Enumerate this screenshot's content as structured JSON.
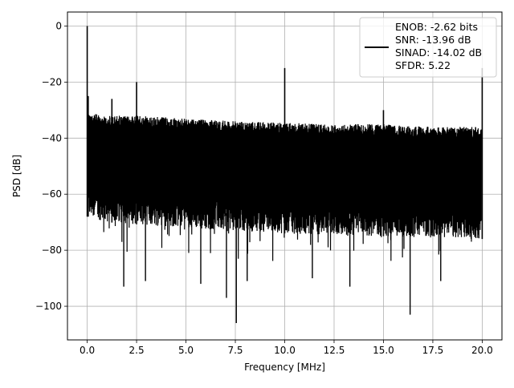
{
  "chart_data": {
    "type": "line",
    "title": "",
    "xlabel": "Frequency [MHz]",
    "ylabel": "PSD [dB]",
    "xlim": [
      -1.0,
      21.0
    ],
    "ylim": [
      -112,
      5
    ],
    "xticks": [
      0.0,
      2.5,
      5.0,
      7.5,
      10.0,
      12.5,
      15.0,
      17.5,
      20.0
    ],
    "xtick_labels": [
      "0.0",
      "2.5",
      "5.0",
      "7.5",
      "10.0",
      "12.5",
      "15.0",
      "17.5",
      "20.0"
    ],
    "yticks": [
      0,
      -20,
      -40,
      -60,
      -80,
      -100
    ],
    "ytick_labels": [
      "0",
      "−20",
      "−40",
      "−60",
      "−80",
      "−100"
    ],
    "grid": true,
    "legend_position": "top-right",
    "legend_entries": [
      "ENOB: -2.62 bits",
      "SNR: -13.96 dB",
      "SINAD: -14.02 dB",
      "SFDR: 5.22"
    ],
    "line_color": "#000000",
    "series": [
      {
        "name": "ENOB: -2.62 bits\nSNR: -13.96 dB\nSINAD: -14.02 dB\nSFDR: 5.22",
        "noise_floor_upper_db": [
          [
            0.05,
            -31
          ],
          [
            1.0,
            -32
          ],
          [
            2.5,
            -32
          ],
          [
            5.0,
            -33
          ],
          [
            7.5,
            -34
          ],
          [
            10.0,
            -34.5
          ],
          [
            12.5,
            -35
          ],
          [
            15.0,
            -35
          ],
          [
            17.5,
            -36
          ],
          [
            19.95,
            -36
          ]
        ],
        "noise_floor_lower_db": [
          [
            0.05,
            -68
          ],
          [
            1.0,
            -70
          ],
          [
            5.0,
            -72
          ],
          [
            10.0,
            -74
          ],
          [
            15.0,
            -75
          ],
          [
            19.95,
            -76
          ]
        ],
        "peaks": [
          {
            "x": 0.0,
            "y": 0
          },
          {
            "x": 0.05,
            "y": -25
          },
          {
            "x": 1.25,
            "y": -26
          },
          {
            "x": 2.5,
            "y": -20
          },
          {
            "x": 10.0,
            "y": -15
          },
          {
            "x": 15.0,
            "y": -30
          },
          {
            "x": 20.0,
            "y": -15
          }
        ],
        "dips": [
          {
            "x": 1.85,
            "y": -93
          },
          {
            "x": 2.95,
            "y": -91
          },
          {
            "x": 5.75,
            "y": -92
          },
          {
            "x": 7.05,
            "y": -97
          },
          {
            "x": 7.55,
            "y": -106
          },
          {
            "x": 8.1,
            "y": -91
          },
          {
            "x": 11.4,
            "y": -90
          },
          {
            "x": 13.3,
            "y": -93
          },
          {
            "x": 16.35,
            "y": -103
          },
          {
            "x": 17.9,
            "y": -91
          }
        ]
      }
    ]
  }
}
